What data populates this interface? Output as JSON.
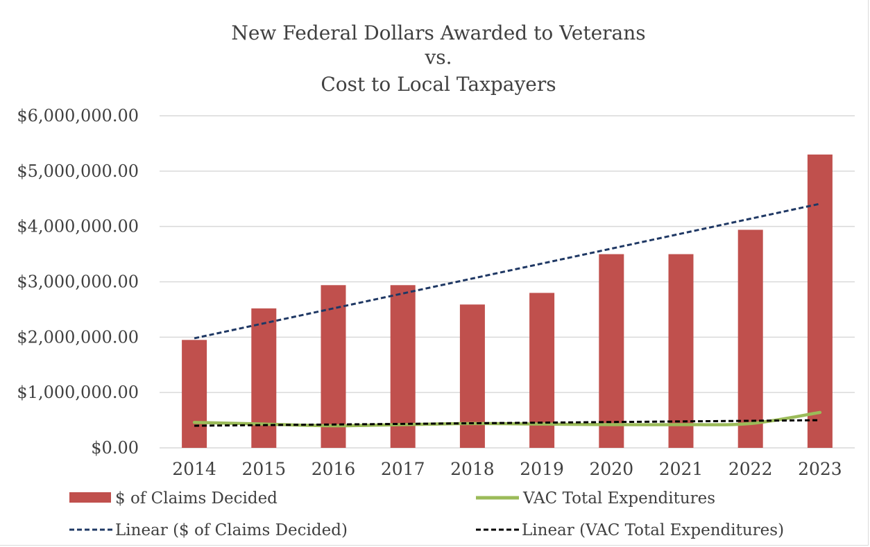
{
  "chart_data": {
    "type": "bar",
    "title_lines": [
      "New Federal Dollars Awarded to Veterans",
      "vs.",
      "Cost to Local Taxpayers"
    ],
    "categories": [
      "2014",
      "2015",
      "2016",
      "2017",
      "2018",
      "2019",
      "2020",
      "2021",
      "2022",
      "2023"
    ],
    "ylim": [
      0,
      6000000
    ],
    "yticks": [
      {
        "value": 0,
        "label": "$0.00"
      },
      {
        "value": 1000000,
        "label": "$1,000,000.00"
      },
      {
        "value": 2000000,
        "label": "$2,000,000.00"
      },
      {
        "value": 3000000,
        "label": "$3,000,000.00"
      },
      {
        "value": 4000000,
        "label": "$4,000,000.00"
      },
      {
        "value": 5000000,
        "label": "$5,000,000.00"
      },
      {
        "value": 6000000,
        "label": "$6,000,000.00"
      }
    ],
    "grid": true,
    "legend_position": "bottom",
    "series": [
      {
        "name": "$ of Claims Decided",
        "type": "bar",
        "color": "#c0504d",
        "values": [
          1950000,
          2520000,
          2940000,
          2940000,
          2590000,
          2800000,
          3500000,
          3500000,
          3940000,
          5300000
        ]
      },
      {
        "name": "VAC Total Expenditures",
        "type": "line",
        "color": "#9bbb59",
        "values": [
          460000,
          430000,
          400000,
          420000,
          440000,
          430000,
          420000,
          420000,
          440000,
          640000
        ]
      }
    ],
    "trendlines": [
      {
        "name": "Linear ($ of Claims Decided)",
        "color": "#1f3864",
        "start": 1980000,
        "end": 4410000
      },
      {
        "name": "Linear (VAC Total Expenditures)",
        "color": "#000000",
        "start": 400000,
        "end": 500000
      }
    ]
  }
}
